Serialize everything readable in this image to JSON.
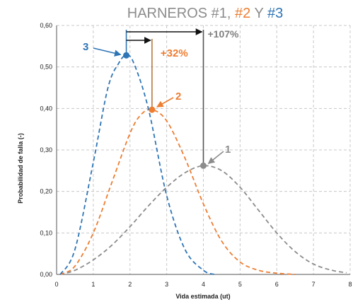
{
  "chart_data": {
    "type": "line",
    "title_parts": [
      {
        "text": "HARNEROS #1, ",
        "color": "#8c8c8c"
      },
      {
        "text": "#2",
        "color": "#ed7d31"
      },
      {
        "text": " Y ",
        "color": "#8c8c8c"
      },
      {
        "text": "#3",
        "color": "#2e75b6"
      }
    ],
    "xlabel": "Vida estimada (ut)",
    "ylabel": "Probabilidad de falla (-)",
    "xlim": [
      0,
      8
    ],
    "ylim": [
      0,
      0.6
    ],
    "xticks": [
      "0",
      "1",
      "2",
      "3",
      "4",
      "5",
      "6",
      "7",
      "8"
    ],
    "yticks": [
      "0,00",
      "0,10",
      "0,20",
      "0,30",
      "0,40",
      "0,50",
      "0,60"
    ],
    "grid": true,
    "line_style": "dashed",
    "series": [
      {
        "label": "1",
        "color": "#8c8c8c",
        "x": [
          0.1,
          0.5,
          1,
          1.5,
          2,
          2.5,
          3,
          3.5,
          4,
          4.5,
          5,
          5.5,
          6,
          6.5,
          7,
          7.5,
          7.9
        ],
        "y": [
          0.0,
          0.01,
          0.035,
          0.07,
          0.115,
          0.165,
          0.21,
          0.245,
          0.262,
          0.25,
          0.21,
          0.155,
          0.1,
          0.055,
          0.025,
          0.01,
          0.004
        ],
        "peak": {
          "x": 4.0,
          "y": 0.262
        }
      },
      {
        "label": "2",
        "color": "#ed7d31",
        "x": [
          0.1,
          0.5,
          1,
          1.5,
          2,
          2.3,
          2.6,
          3,
          3.5,
          4,
          4.5,
          5,
          5.5,
          6,
          6.5
        ],
        "y": [
          0.0,
          0.02,
          0.1,
          0.22,
          0.34,
          0.385,
          0.397,
          0.37,
          0.28,
          0.17,
          0.08,
          0.03,
          0.01,
          0.003,
          0.0
        ],
        "peak": {
          "x": 2.6,
          "y": 0.397
        }
      },
      {
        "label": "3",
        "color": "#2e75b6",
        "x": [
          0.1,
          0.5,
          1,
          1.4,
          1.7,
          1.9,
          2.1,
          2.5,
          3,
          3.5,
          4,
          4.3
        ],
        "y": [
          0.0,
          0.06,
          0.27,
          0.45,
          0.51,
          0.528,
          0.51,
          0.4,
          0.19,
          0.06,
          0.01,
          0.0
        ],
        "peak": {
          "x": 1.9,
          "y": 0.528
        }
      }
    ],
    "annotations": {
      "pct_2": {
        "text": "+32%",
        "color": "#ed7d31"
      },
      "pct_1": {
        "text": "+107%",
        "color": "#7f7f7f"
      }
    }
  }
}
